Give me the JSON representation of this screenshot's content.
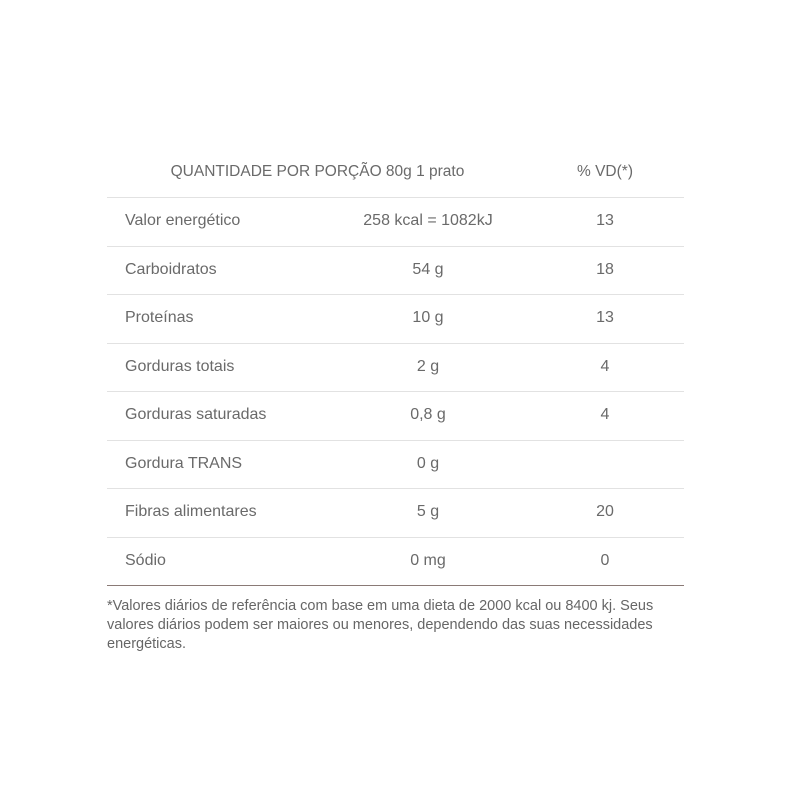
{
  "header": {
    "serving": "QUANTIDADE POR PORÇÃO 80g 1 prato",
    "dv": "% VD(*)"
  },
  "rows": [
    {
      "name": "Valor energético",
      "amount": "258 kcal = 1082kJ",
      "dv": "13"
    },
    {
      "name": "Carboidratos",
      "amount": "54 g",
      "dv": "18"
    },
    {
      "name": "Proteínas",
      "amount": "10 g",
      "dv": "13"
    },
    {
      "name": "Gorduras totais",
      "amount": "2 g",
      "dv": "4"
    },
    {
      "name": "Gorduras saturadas",
      "amount": "0,8 g",
      "dv": "4"
    },
    {
      "name": "Gordura TRANS",
      "amount": "0 g",
      "dv": ""
    },
    {
      "name": "Fibras alimentares",
      "amount": "5 g",
      "dv": "20"
    },
    {
      "name": "Sódio",
      "amount": "0 mg",
      "dv": "0"
    }
  ],
  "footnote": "*Valores diários de referência com base em uma dieta de 2000 kcal ou 8400 kj. Seus valores diários podem ser maiores ou menores, dependendo das suas necessidades energéticas."
}
